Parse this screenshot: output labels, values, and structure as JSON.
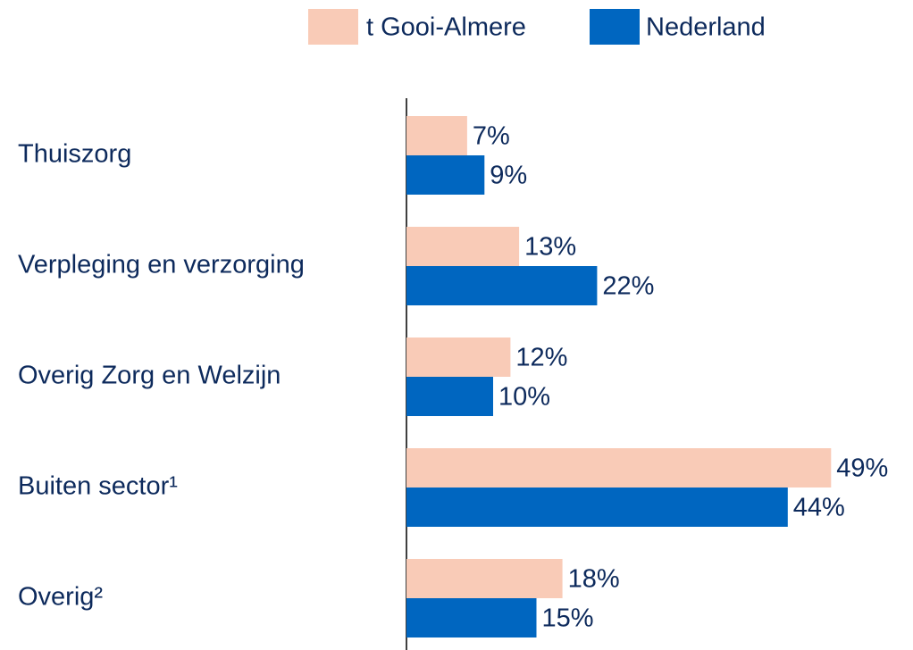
{
  "chart_data": {
    "type": "bar",
    "orientation": "horizontal",
    "categories": [
      "Thuiszorg",
      "Verpleging en verzorging",
      "Overig Zorg en Welzijn",
      "Buiten sector¹",
      "Overig²"
    ],
    "series": [
      {
        "name": "t Gooi-Almere",
        "color": "#f9cbb7",
        "values": [
          7,
          13,
          12,
          49,
          18
        ],
        "value_labels": [
          "7%",
          "13%",
          "12%",
          "49%",
          "18%"
        ]
      },
      {
        "name": "Nederland",
        "color": "#0066c0",
        "values": [
          9,
          22,
          10,
          44,
          15
        ],
        "value_labels": [
          "9%",
          "22%",
          "10%",
          "44%",
          "15%"
        ]
      }
    ],
    "legend": "top"
  }
}
